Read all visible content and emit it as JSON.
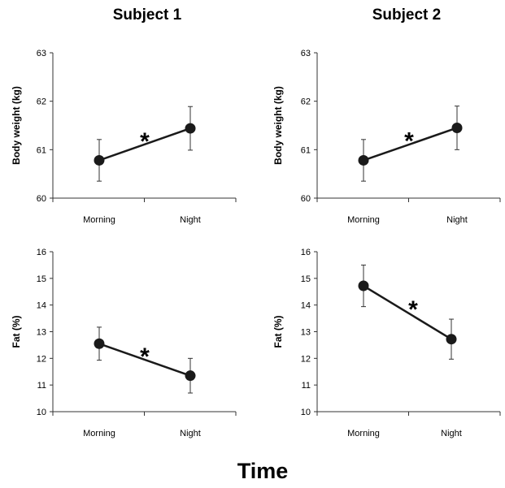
{
  "figure": {
    "column_titles": [
      "Subject 1",
      "Subject 2"
    ],
    "xlabel": "Time",
    "colors": {
      "marker": "#1a1a1a",
      "line": "#1a1a1a",
      "axis": "#333333"
    }
  },
  "chart_data": [
    {
      "type": "line",
      "title": "Subject 1",
      "xlabel": "",
      "ylabel": "Body weight (kg)",
      "categories": [
        "Morning",
        "Night"
      ],
      "values": [
        60.78,
        61.44
      ],
      "error": [
        0.43,
        0.45
      ],
      "ylim": [
        60,
        63
      ],
      "yticks": [
        60,
        61,
        62,
        63
      ],
      "annotation": "*",
      "grid": false
    },
    {
      "type": "line",
      "title": "Subject 2",
      "xlabel": "",
      "ylabel": "Body weight (kg)",
      "categories": [
        "Morning",
        "Night"
      ],
      "values": [
        60.78,
        61.45
      ],
      "error": [
        0.43,
        0.45
      ],
      "ylim": [
        60,
        63
      ],
      "yticks": [
        60,
        61,
        62,
        63
      ],
      "annotation": "*",
      "grid": false
    },
    {
      "type": "line",
      "title": "",
      "xlabel": "",
      "ylabel": "Fat (%)",
      "categories": [
        "Morning",
        "Night"
      ],
      "values": [
        12.55,
        11.35
      ],
      "error": [
        0.62,
        0.65
      ],
      "ylim": [
        10,
        16
      ],
      "yticks": [
        10,
        11,
        12,
        13,
        14,
        15,
        16
      ],
      "annotation": "*",
      "grid": false
    },
    {
      "type": "line",
      "title": "",
      "xlabel": "",
      "ylabel": "Fat (%)",
      "categories": [
        "Morning",
        "Night"
      ],
      "values": [
        14.72,
        12.72
      ],
      "error": [
        0.78,
        0.75
      ],
      "ylim": [
        10,
        16
      ],
      "yticks": [
        10,
        11,
        12,
        13,
        14,
        15,
        16
      ],
      "annotation": "*",
      "grid": false
    }
  ]
}
